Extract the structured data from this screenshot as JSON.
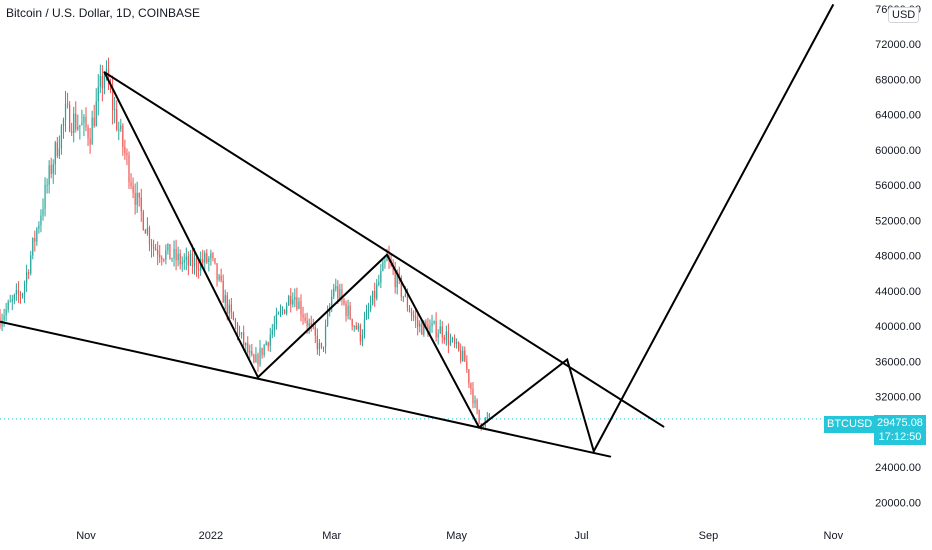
{
  "header": {
    "title": "Bitcoin / U.S. Dollar, 1D, COINBASE",
    "currency_button": "USD"
  },
  "price_tag": {
    "symbol": "BTCUSD",
    "price": "29475.08",
    "countdown": "17:12:50"
  },
  "colors": {
    "up": "#26a69a",
    "down": "#ef5350",
    "drawing": "#000000",
    "price_line": "#26c6da",
    "axis_text": "#131722"
  },
  "chart_data": {
    "type": "candlestick",
    "title": "Bitcoin / U.S. Dollar, 1D, COINBASE",
    "currency": "USD",
    "y_axis": {
      "ticks": [
        "76000.00",
        "72000.00",
        "68000.00",
        "64000.00",
        "60000.00",
        "56000.00",
        "52000.00",
        "48000.00",
        "44000.00",
        "40000.00",
        "36000.00",
        "32000.00",
        "28000.00",
        "24000.00",
        "20000.00"
      ],
      "tick_values": [
        76000,
        72000,
        68000,
        64000,
        60000,
        56000,
        52000,
        48000,
        44000,
        40000,
        36000,
        32000,
        28000,
        24000,
        20000
      ],
      "range": [
        18000,
        77000
      ]
    },
    "x_axis": {
      "labels": [
        "Nov",
        "2022",
        "Mar",
        "May",
        "Jul",
        "Sep",
        "Nov"
      ],
      "label_dates": [
        "2021-11-01",
        "2022-01-01",
        "2022-03-01",
        "2022-05-01",
        "2022-07-01",
        "2022-09-01",
        "2022-11-01"
      ],
      "range": [
        "2021-09-20",
        "2022-11-15"
      ]
    },
    "last_price": 29475.08,
    "waypoints": [
      {
        "date": "2021-09-20",
        "price": 41000
      },
      {
        "date": "2021-10-01",
        "price": 44000
      },
      {
        "date": "2021-10-15",
        "price": 58000
      },
      {
        "date": "2021-10-22",
        "price": 64000
      },
      {
        "date": "2021-11-03",
        "price": 62000
      },
      {
        "date": "2021-11-10",
        "price": 68800
      },
      {
        "date": "2021-11-26",
        "price": 54000
      },
      {
        "date": "2021-12-04",
        "price": 49000
      },
      {
        "date": "2021-12-20",
        "price": 47000
      },
      {
        "date": "2022-01-01",
        "price": 47500
      },
      {
        "date": "2022-01-10",
        "price": 41500
      },
      {
        "date": "2022-01-22",
        "price": 35500
      },
      {
        "date": "2022-02-10",
        "price": 44000
      },
      {
        "date": "2022-02-24",
        "price": 37000
      },
      {
        "date": "2022-03-02",
        "price": 44500
      },
      {
        "date": "2022-03-15",
        "price": 39000
      },
      {
        "date": "2022-03-28",
        "price": 47500
      },
      {
        "date": "2022-04-12",
        "price": 40000
      },
      {
        "date": "2022-04-24",
        "price": 39500
      },
      {
        "date": "2022-05-05",
        "price": 36000
      },
      {
        "date": "2022-05-12",
        "price": 29000
      },
      {
        "date": "2022-05-17",
        "price": 29475
      }
    ],
    "drawings": {
      "upper_trendline": [
        {
          "date": "2021-11-10",
          "price": 68800
        },
        {
          "date": "2022-08-10",
          "price": 28600
        }
      ],
      "lower_trendline": [
        {
          "date": "2021-09-20",
          "price": 40500
        },
        {
          "date": "2022-07-15",
          "price": 25200
        }
      ],
      "zigzag": [
        {
          "date": "2021-11-10",
          "price": 68800
        },
        {
          "date": "2022-01-24",
          "price": 34200
        },
        {
          "date": "2022-03-28",
          "price": 48100
        },
        {
          "date": "2022-05-12",
          "price": 28500
        },
        {
          "date": "2022-06-24",
          "price": 36200
        },
        {
          "date": "2022-07-07",
          "price": 25800
        },
        {
          "date": "2022-11-01",
          "price": 76500
        }
      ]
    }
  }
}
